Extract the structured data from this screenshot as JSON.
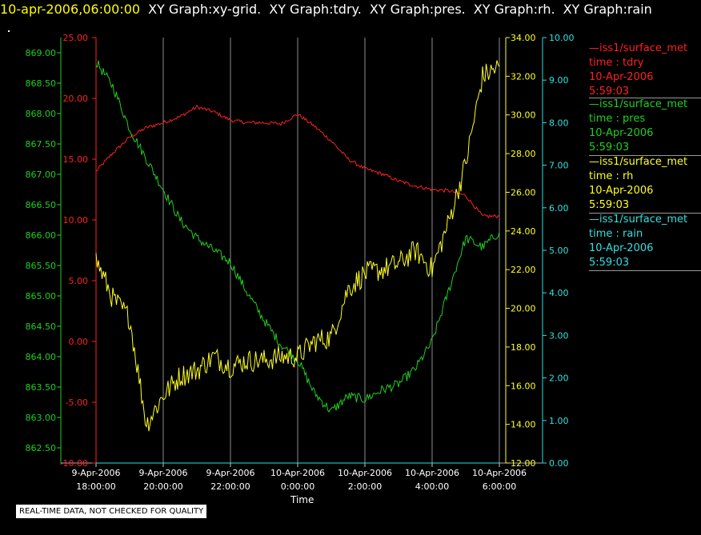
{
  "header": {
    "time": "10-apr-2006,06:00:00",
    "items": [
      "XY Graph:xy-grid.",
      "XY Graph:tdry.",
      "XY Graph:pres.",
      "XY Graph:rh.",
      "XY Graph:rain"
    ]
  },
  "legend": [
    {
      "name": "—iss1/surface_met",
      "field": "time : tdry",
      "date": "10-Apr-2006",
      "time": "5:59:03",
      "color": "#ff2020"
    },
    {
      "name": "—iss1/surface_met",
      "field": "time : pres",
      "date": "10-Apr-2006",
      "time": "5:59:03",
      "color": "#20d020"
    },
    {
      "name": "—iss1/surface_met",
      "field": "time : rh",
      "date": "10-Apr-2006",
      "time": "5:59:03",
      "color": "#ffff20"
    },
    {
      "name": "—iss1/surface_met",
      "field": "time : rain",
      "date": "10-Apr-2006",
      "time": "5:59:03",
      "color": "#30e0e0"
    }
  ],
  "footer": "REAL-TIME DATA, NOT CHECKED FOR QUALITY",
  "chart_data": {
    "type": "line",
    "xlabel": "Time",
    "x_unit": "hours",
    "xlim": [
      "2006-04-09 18:00",
      "2006-04-10 06:00"
    ],
    "x_ticks": [
      {
        "date": "9-Apr-2006",
        "time": "18:00:00"
      },
      {
        "date": "9-Apr-2006",
        "time": "20:00:00"
      },
      {
        "date": "9-Apr-2006",
        "time": "22:00:00"
      },
      {
        "date": "10-Apr-2006",
        "time": "0:00:00"
      },
      {
        "date": "10-Apr-2006",
        "time": "2:00:00"
      },
      {
        "date": "10-Apr-2006",
        "time": "4:00:00"
      },
      {
        "date": "10-Apr-2006",
        "time": "6:00:00"
      }
    ],
    "grid": "vertical",
    "axes": {
      "pres": {
        "color": "#20d020",
        "ylim": [
          862.25,
          869.25
        ],
        "ticks": [
          "869.00",
          "868.50",
          "868.00",
          "867.50",
          "867.00",
          "866.50",
          "866.00",
          "865.50",
          "865.00",
          "864.50",
          "864.00",
          "863.50",
          "863.00",
          "862.50"
        ]
      },
      "tdry": {
        "color": "#ff2020",
        "ylim": [
          -10,
          25
        ],
        "ticks": [
          "25.00",
          "20.00",
          "15.00",
          "10.00",
          "5.00",
          "0.00",
          "-5.00",
          "-10.00"
        ]
      },
      "rh": {
        "color": "#ffff20",
        "ylim": [
          12,
          34
        ],
        "ticks": [
          "34.00",
          "32.00",
          "30.00",
          "28.00",
          "26.00",
          "24.00",
          "22.00",
          "20.00",
          "18.00",
          "16.00",
          "14.00",
          "12.00"
        ]
      },
      "rain": {
        "color": "#30e0e0",
        "ylim": [
          0,
          10
        ],
        "ticks": [
          "10.00",
          "9.00",
          "8.00",
          "7.00",
          "6.00",
          "5.00",
          "4.00",
          "3.00",
          "2.00",
          "1.00",
          "0.00"
        ]
      }
    },
    "series": [
      {
        "name": "tdry",
        "axis": "tdry",
        "color": "#ff2020",
        "x": [
          "2006-04-09 18:00",
          "2006-04-09 18:30",
          "2006-04-09 19:00",
          "2006-04-09 19:30",
          "2006-04-09 20:00",
          "2006-04-09 20:30",
          "2006-04-09 21:00",
          "2006-04-09 21:30",
          "2006-04-09 22:00",
          "2006-04-09 22:30",
          "2006-04-09 23:00",
          "2006-04-09 23:30",
          "2006-04-10 00:00",
          "2006-04-10 00:30",
          "2006-04-10 01:00",
          "2006-04-10 01:30",
          "2006-04-10 02:00",
          "2006-04-10 02:30",
          "2006-04-10 03:00",
          "2006-04-10 03:30",
          "2006-04-10 04:00",
          "2006-04-10 04:30",
          "2006-04-10 05:00",
          "2006-04-10 05:30",
          "2006-04-10 06:00"
        ],
        "y": [
          14.0,
          15.5,
          16.8,
          17.6,
          18.0,
          18.5,
          19.3,
          18.9,
          18.2,
          18.0,
          18.0,
          17.9,
          18.7,
          17.7,
          16.5,
          15.0,
          14.2,
          13.8,
          13.2,
          12.8,
          12.5,
          12.4,
          12.0,
          10.3,
          10.3
        ]
      },
      {
        "name": "pres",
        "axis": "pres",
        "color": "#20d020",
        "x": [
          "2006-04-09 18:00",
          "2006-04-09 18:30",
          "2006-04-09 19:00",
          "2006-04-09 19:30",
          "2006-04-09 20:00",
          "2006-04-09 20:30",
          "2006-04-09 21:00",
          "2006-04-09 21:30",
          "2006-04-09 22:00",
          "2006-04-09 22:30",
          "2006-04-09 23:00",
          "2006-04-09 23:30",
          "2006-04-10 00:00",
          "2006-04-10 00:30",
          "2006-04-10 01:00",
          "2006-04-10 01:30",
          "2006-04-10 02:00",
          "2006-04-10 02:30",
          "2006-04-10 03:00",
          "2006-04-10 03:30",
          "2006-04-10 04:00",
          "2006-04-10 04:30",
          "2006-04-10 05:00",
          "2006-04-10 05:30",
          "2006-04-10 06:00"
        ],
        "y": [
          868.85,
          868.45,
          867.75,
          867.25,
          866.75,
          866.25,
          865.95,
          865.75,
          865.55,
          865.05,
          864.6,
          864.2,
          863.95,
          863.4,
          863.1,
          863.35,
          863.3,
          863.45,
          863.55,
          863.8,
          864.25,
          865.1,
          865.95,
          865.8,
          866.05
        ]
      },
      {
        "name": "rh",
        "axis": "rh",
        "color": "#ffff20",
        "x": [
          "2006-04-09 18:00",
          "2006-04-09 18:30",
          "2006-04-09 19:00",
          "2006-04-09 19:30",
          "2006-04-09 20:00",
          "2006-04-09 20:30",
          "2006-04-09 21:00",
          "2006-04-09 21:30",
          "2006-04-09 22:00",
          "2006-04-09 22:30",
          "2006-04-09 23:00",
          "2006-04-09 23:30",
          "2006-04-10 00:00",
          "2006-04-10 00:30",
          "2006-04-10 01:00",
          "2006-04-10 01:30",
          "2006-04-10 02:00",
          "2006-04-10 02:30",
          "2006-04-10 03:00",
          "2006-04-10 03:30",
          "2006-04-10 04:00",
          "2006-04-10 04:30",
          "2006-04-10 05:00",
          "2006-04-10 05:30",
          "2006-04-10 06:00"
        ],
        "y": [
          22.5,
          20.5,
          19.5,
          14.0,
          15.5,
          16.5,
          16.8,
          17.5,
          17.0,
          17.3,
          17.3,
          17.5,
          17.5,
          18.3,
          18.5,
          21.0,
          21.8,
          22.0,
          22.3,
          23.0,
          22.0,
          24.5,
          27.5,
          32.0,
          32.5
        ]
      },
      {
        "name": "rain",
        "axis": "rain",
        "color": "#30e0e0",
        "x": [
          "2006-04-09 18:00",
          "2006-04-10 06:00"
        ],
        "y": [
          0.0,
          0.0
        ]
      }
    ]
  }
}
